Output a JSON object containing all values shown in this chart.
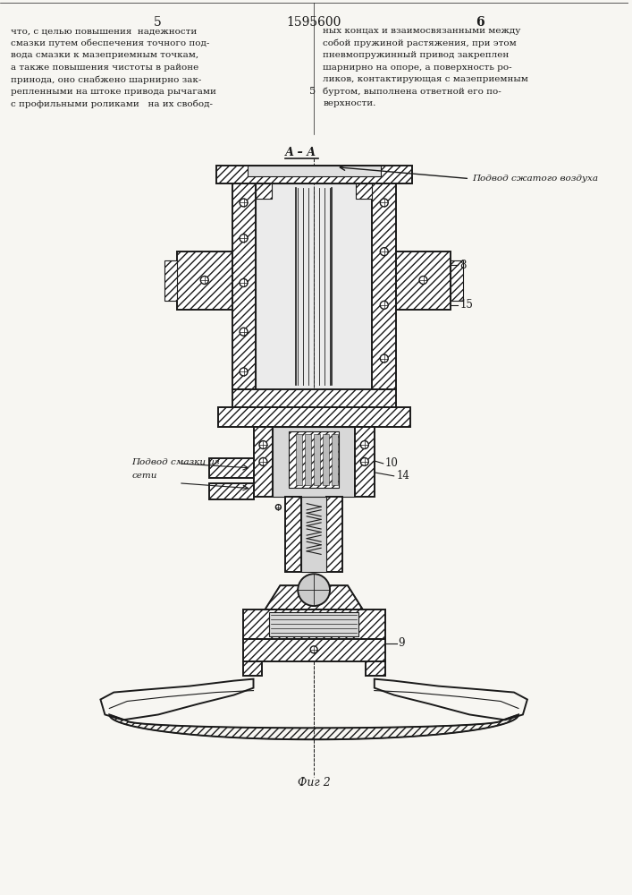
{
  "page_num_left": "5",
  "page_num_center": "1595600",
  "page_num_right": "6",
  "text_left_lines": [
    "что, с целью повышения  надежности",
    "смазки путем обеспечения точного под-",
    "вода смазки к мазеприемным точкам,",
    "а также повышения чистоты в районе",
    "принода, оно снабжено шарнирно зак-",
    "репленными на штоке привода рычагами",
    "с профильными роликами   на их свобод-"
  ],
  "text_right_lines": [
    "ных концах и взаимосвязанными между",
    "собой пружиной растяжения, при этом",
    "пневмопружинный привод закреплен",
    "шарнирно на опоре, а поверхность ро-",
    "ликов, контактирующая с мазеприемным",
    "буртом, выполнена ответной его по-",
    "верхности."
  ],
  "mid_marker": "5",
  "section_label": "А – А",
  "label_air": "Подвод сжатого воздуха",
  "label_lube_1": "Подвод смазки из",
  "label_lube_2": "сети",
  "label_8": "8",
  "label_15": "15",
  "label_10": "10",
  "label_14": "14",
  "label_9": "9",
  "fig_label": "Фиг 2",
  "bg_color": "#f7f6f2",
  "line_color": "#1a1a1a"
}
